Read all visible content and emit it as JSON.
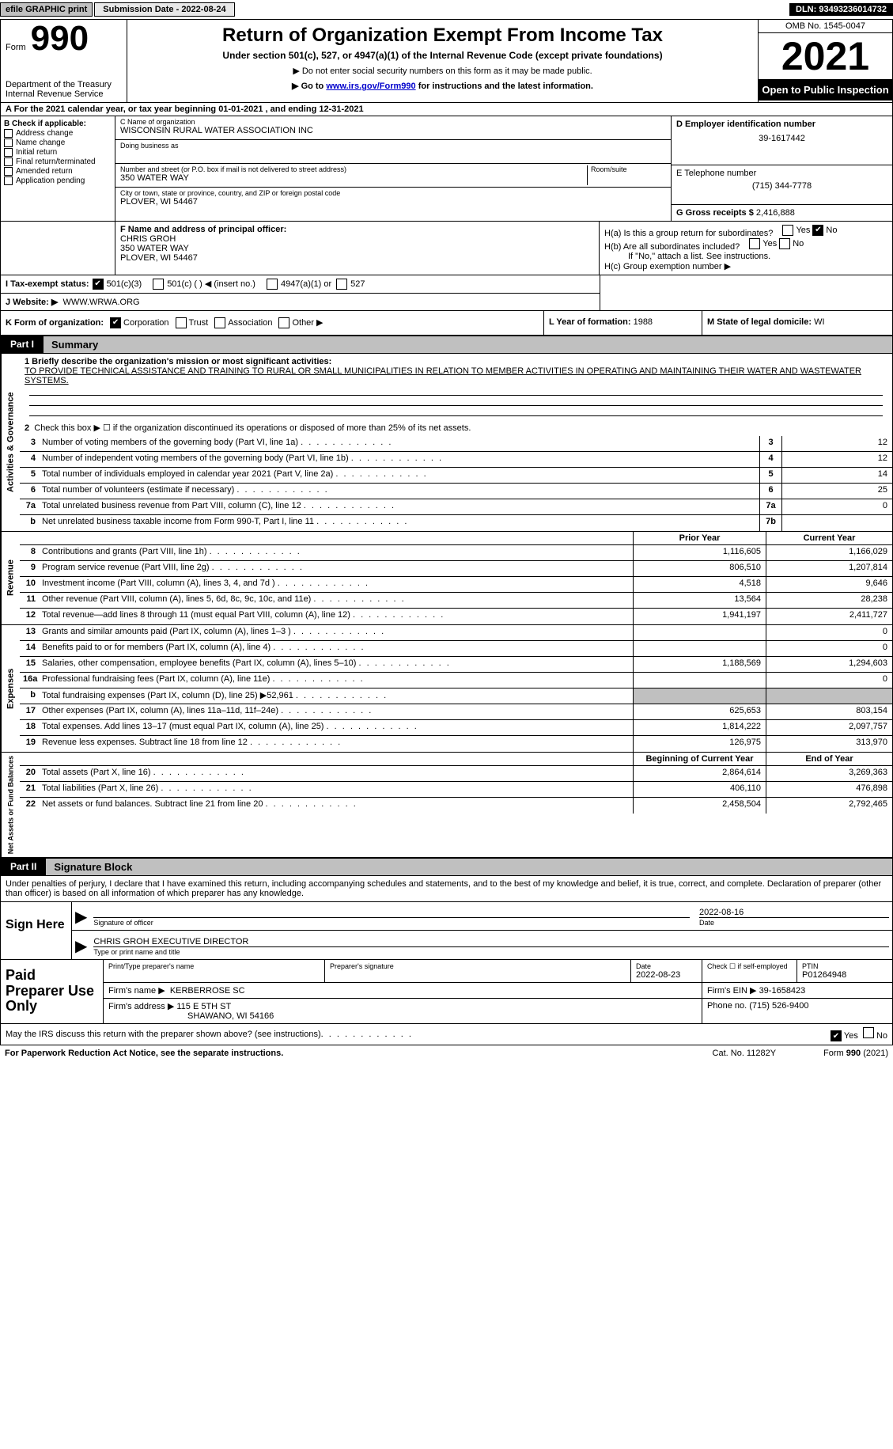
{
  "topbar": {
    "efile": "efile GRAPHIC print",
    "submission_label": "Submission Date - 2022-08-24",
    "dln": "DLN: 93493236014732"
  },
  "header": {
    "form_word": "Form",
    "form_num": "990",
    "dept": "Department of the Treasury\nInternal Revenue Service",
    "title": "Return of Organization Exempt From Income Tax",
    "subtitle": "Under section 501(c), 527, or 4947(a)(1) of the Internal Revenue Code (except private foundations)",
    "note1": "▶ Do not enter social security numbers on this form as it may be made public.",
    "note2_pre": "▶ Go to ",
    "note2_link": "www.irs.gov/Form990",
    "note2_post": " for instructions and the latest information.",
    "omb": "OMB No. 1545-0047",
    "year": "2021",
    "open": "Open to Public Inspection"
  },
  "row_a": {
    "text": "A For the 2021 calendar year, or tax year beginning 01-01-2021    , and ending 12-31-2021"
  },
  "col_b": {
    "label": "B Check if applicable:",
    "items": [
      "Address change",
      "Name change",
      "Initial return",
      "Final return/terminated",
      "Amended return",
      "Application pending"
    ]
  },
  "col_c": {
    "name_label": "C Name of organization",
    "name": "WISCONSIN RURAL WATER ASSOCIATION INC",
    "dba_label": "Doing business as",
    "dba": "",
    "addr_label": "Number and street (or P.O. box if mail is not delivered to street address)",
    "room_label": "Room/suite",
    "addr": "350 WATER WAY",
    "city_label": "City or town, state or province, country, and ZIP or foreign postal code",
    "city": "PLOVER, WI  54467"
  },
  "col_d": {
    "label": "D Employer identification number",
    "value": "39-1617442"
  },
  "col_e": {
    "label": "E Telephone number",
    "value": "(715) 344-7778"
  },
  "col_g": {
    "label": "G Gross receipts $",
    "value": "2,416,888"
  },
  "col_f": {
    "label": "F  Name and address of principal officer:",
    "name": "CHRIS GROH",
    "addr1": "350 WATER WAY",
    "addr2": "PLOVER, WI  54467"
  },
  "col_h": {
    "ha": "H(a)  Is this a group return for subordinates?",
    "hb": "H(b)  Are all subordinates included?",
    "hb_note": "If \"No,\" attach a list. See instructions.",
    "hc": "H(c)  Group exemption number ▶"
  },
  "row_i": {
    "label": "I   Tax-exempt status:",
    "opts": [
      "501(c)(3)",
      "501(c) (  ) ◀ (insert no.)",
      "4947(a)(1) or",
      "527"
    ]
  },
  "row_j": {
    "label": "J   Website: ▶",
    "value": "WWW.WRWA.ORG"
  },
  "row_k": {
    "label": "K Form of organization:",
    "opts": [
      "Corporation",
      "Trust",
      "Association",
      "Other ▶"
    ]
  },
  "row_l": {
    "label": "L Year of formation:",
    "value": "1988"
  },
  "row_m": {
    "label": "M State of legal domicile:",
    "value": "WI"
  },
  "part1": {
    "num": "Part I",
    "title": "Summary",
    "tab_ag": "Activities & Governance",
    "tab_rev": "Revenue",
    "tab_exp": "Expenses",
    "tab_na": "Net Assets or Fund Balances",
    "l1_label": "1  Briefly describe the organization's mission or most significant activities:",
    "l1_text": "TO PROVIDE TECHNICAL ASSISTANCE AND TRAINING TO RURAL OR SMALL MUNICIPALITIES IN RELATION TO MEMBER ACTIVITIES IN OPERATING AND MAINTAINING THEIR WATER AND WASTEWATER SYSTEMS.",
    "l2": "Check this box ▶ ☐  if the organization discontinued its operations or disposed of more than 25% of its net assets.",
    "lines_ag": [
      {
        "n": "3",
        "t": "Number of voting members of the governing body (Part VI, line 1a)",
        "box": "3",
        "v": "12"
      },
      {
        "n": "4",
        "t": "Number of independent voting members of the governing body (Part VI, line 1b)",
        "box": "4",
        "v": "12"
      },
      {
        "n": "5",
        "t": "Total number of individuals employed in calendar year 2021 (Part V, line 2a)",
        "box": "5",
        "v": "14"
      },
      {
        "n": "6",
        "t": "Total number of volunteers (estimate if necessary)",
        "box": "6",
        "v": "25"
      },
      {
        "n": "7a",
        "t": "Total unrelated business revenue from Part VIII, column (C), line 12",
        "box": "7a",
        "v": "0"
      },
      {
        "n": "b",
        "t": "Net unrelated business taxable income from Form 990-T, Part I, line 11",
        "box": "7b",
        "v": ""
      }
    ],
    "hdr_py": "Prior Year",
    "hdr_cy": "Current Year",
    "lines_rev": [
      {
        "n": "8",
        "t": "Contributions and grants (Part VIII, line 1h)",
        "py": "1,116,605",
        "cy": "1,166,029"
      },
      {
        "n": "9",
        "t": "Program service revenue (Part VIII, line 2g)",
        "py": "806,510",
        "cy": "1,207,814"
      },
      {
        "n": "10",
        "t": "Investment income (Part VIII, column (A), lines 3, 4, and 7d )",
        "py": "4,518",
        "cy": "9,646"
      },
      {
        "n": "11",
        "t": "Other revenue (Part VIII, column (A), lines 5, 6d, 8c, 9c, 10c, and 11e)",
        "py": "13,564",
        "cy": "28,238"
      },
      {
        "n": "12",
        "t": "Total revenue—add lines 8 through 11 (must equal Part VIII, column (A), line 12)",
        "py": "1,941,197",
        "cy": "2,411,727"
      }
    ],
    "lines_exp": [
      {
        "n": "13",
        "t": "Grants and similar amounts paid (Part IX, column (A), lines 1–3 )",
        "py": "",
        "cy": "0"
      },
      {
        "n": "14",
        "t": "Benefits paid to or for members (Part IX, column (A), line 4)",
        "py": "",
        "cy": "0"
      },
      {
        "n": "15",
        "t": "Salaries, other compensation, employee benefits (Part IX, column (A), lines 5–10)",
        "py": "1,188,569",
        "cy": "1,294,603"
      },
      {
        "n": "16a",
        "t": "Professional fundraising fees (Part IX, column (A), line 11e)",
        "py": "",
        "cy": "0"
      },
      {
        "n": "b",
        "t": "Total fundraising expenses (Part IX, column (D), line 25) ▶52,961",
        "py": "SHADE",
        "cy": "SHADE"
      },
      {
        "n": "17",
        "t": "Other expenses (Part IX, column (A), lines 11a–11d, 11f–24e)",
        "py": "625,653",
        "cy": "803,154"
      },
      {
        "n": "18",
        "t": "Total expenses. Add lines 13–17 (must equal Part IX, column (A), line 25)",
        "py": "1,814,222",
        "cy": "2,097,757"
      },
      {
        "n": "19",
        "t": "Revenue less expenses. Subtract line 18 from line 12",
        "py": "126,975",
        "cy": "313,970"
      }
    ],
    "hdr_boy": "Beginning of Current Year",
    "hdr_eoy": "End of Year",
    "lines_na": [
      {
        "n": "20",
        "t": "Total assets (Part X, line 16)",
        "py": "2,864,614",
        "cy": "3,269,363"
      },
      {
        "n": "21",
        "t": "Total liabilities (Part X, line 26)",
        "py": "406,110",
        "cy": "476,898"
      },
      {
        "n": "22",
        "t": "Net assets or fund balances. Subtract line 21 from line 20",
        "py": "2,458,504",
        "cy": "2,792,465"
      }
    ]
  },
  "part2": {
    "num": "Part II",
    "title": "Signature Block",
    "decl": "Under penalties of perjury, I declare that I have examined this return, including accompanying schedules and statements, and to the best of my knowledge and belief, it is true, correct, and complete. Declaration of preparer (other than officer) is based on all information of which preparer has any knowledge."
  },
  "sign": {
    "here": "Sign Here",
    "sig_label": "Signature of officer",
    "date_label": "Date",
    "date": "2022-08-16",
    "name": "CHRIS GROH  EXECUTIVE DIRECTOR",
    "name_label": "Type or print name and title"
  },
  "prep": {
    "label": "Paid Preparer Use Only",
    "name_label": "Print/Type preparer's name",
    "sig_label": "Preparer's signature",
    "date_label": "Date",
    "date": "2022-08-23",
    "check_label": "Check ☐ if self-employed",
    "ptin_label": "PTIN",
    "ptin": "P01264948",
    "firm_name_label": "Firm's name    ▶",
    "firm_name": "KERBERROSE SC",
    "firm_ein_label": "Firm's EIN ▶",
    "firm_ein": "39-1658423",
    "firm_addr_label": "Firm's address ▶",
    "firm_addr1": "115 E 5TH ST",
    "firm_addr2": "SHAWANO, WI  54166",
    "phone_label": "Phone no.",
    "phone": "(715) 526-9400"
  },
  "footer": {
    "discuss": "May the IRS discuss this return with the preparer shown above? (see instructions)",
    "paperwork": "For Paperwork Reduction Act Notice, see the separate instructions.",
    "cat": "Cat. No. 11282Y",
    "form": "Form 990 (2021)"
  },
  "colors": {
    "black": "#000000",
    "grey": "#c0c0c0",
    "link": "#0000cc"
  }
}
